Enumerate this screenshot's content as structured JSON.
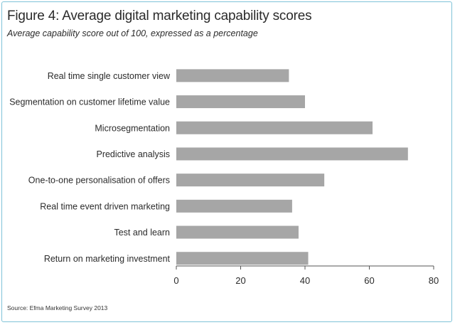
{
  "figure": {
    "title": "Figure 4: Average digital marketing capability scores",
    "subtitle": "Average capability score out of 100, expressed as a percentage",
    "source": "Source: Efma Marketing Survey 2013"
  },
  "colors": {
    "bar": "#a6a6a6",
    "axis": "#555555",
    "border": "#7fc3d8"
  },
  "chart_data": {
    "type": "bar",
    "orientation": "horizontal",
    "title": "Figure 4: Average digital marketing capability scores",
    "subtitle": "Average capability score out of 100, expressed as a percentage",
    "categories": [
      "Real time single customer view",
      "Segmentation on customer lifetime value",
      "Microsegmentation",
      "Predictive analysis",
      "One-to-one personalisation of offers",
      "Real time event driven marketing",
      "Test and learn",
      "Return on marketing investment"
    ],
    "values": [
      35,
      40,
      61,
      72,
      46,
      36,
      38,
      41
    ],
    "xlim": [
      0,
      80
    ],
    "xticks": [
      0,
      20,
      40,
      60,
      80
    ],
    "xlabel": "",
    "ylabel": "",
    "grid": false,
    "legend": "none"
  }
}
